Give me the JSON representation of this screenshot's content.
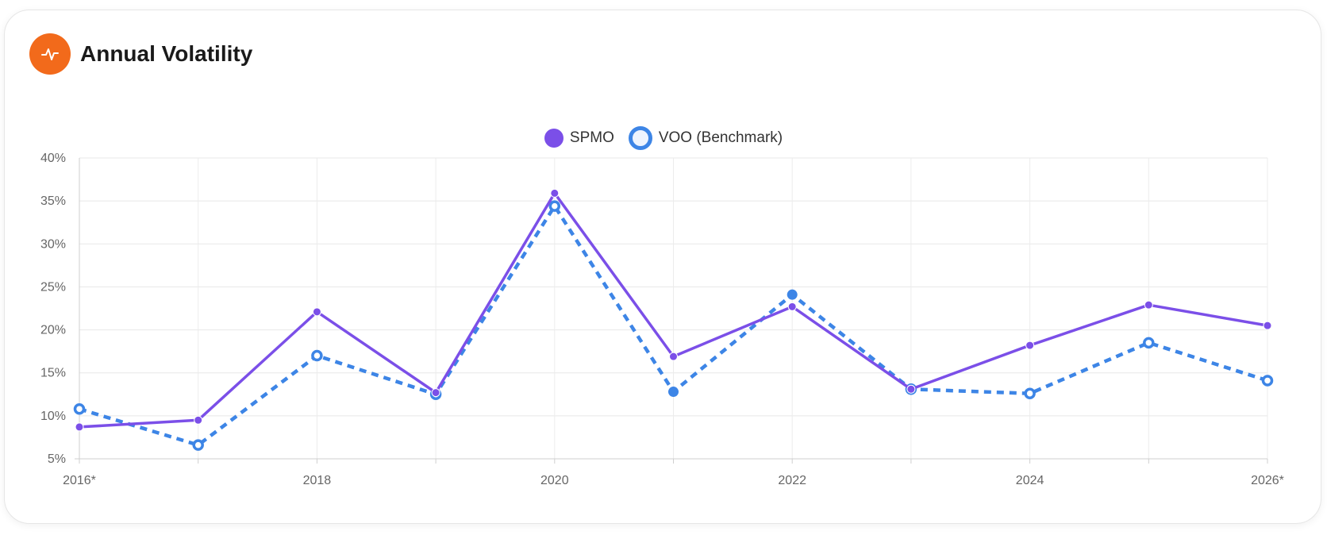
{
  "card": {
    "title": "Annual Volatility",
    "icon": "activity-pulse-icon",
    "icon_color": "#f26a1b"
  },
  "chart_data": {
    "type": "line",
    "title": "",
    "xlabel": "",
    "ylabel": "",
    "x": [
      2016,
      2017,
      2018,
      2019,
      2020,
      2021,
      2022,
      2023,
      2024,
      2025,
      2026
    ],
    "x_tick_labels": [
      {
        "x": 2016,
        "label": "2016*"
      },
      {
        "x": 2018,
        "label": "2018"
      },
      {
        "x": 2020,
        "label": "2020"
      },
      {
        "x": 2022,
        "label": "2022"
      },
      {
        "x": 2024,
        "label": "2024"
      },
      {
        "x": 2026,
        "label": "2026*"
      }
    ],
    "y_ticks": [
      {
        "value": 5,
        "label": "5%"
      },
      {
        "value": 10,
        "label": "10%"
      },
      {
        "value": 15,
        "label": "15%"
      },
      {
        "value": 20,
        "label": "20%"
      },
      {
        "value": 25,
        "label": "25%"
      },
      {
        "value": 30,
        "label": "30%"
      },
      {
        "value": 35,
        "label": "35%"
      },
      {
        "value": 40,
        "label": "40%"
      }
    ],
    "ylim": [
      5,
      40
    ],
    "xlim": [
      2016,
      2026
    ],
    "grid": true,
    "legend_position": "top-center",
    "series": [
      {
        "name": "SPMO",
        "color": "#7b4fe8",
        "style": "solid",
        "marker": "filled",
        "values": [
          8.7,
          9.5,
          22.1,
          12.7,
          35.9,
          16.9,
          22.7,
          13.1,
          18.2,
          22.9,
          20.5
        ]
      },
      {
        "name": "VOO (Benchmark)",
        "color": "#3d85e6",
        "style": "dashed",
        "marker": "hollow",
        "values": [
          10.8,
          6.6,
          17.0,
          12.5,
          34.4,
          12.8,
          24.1,
          13.1,
          12.6,
          18.5,
          14.1
        ]
      }
    ]
  }
}
